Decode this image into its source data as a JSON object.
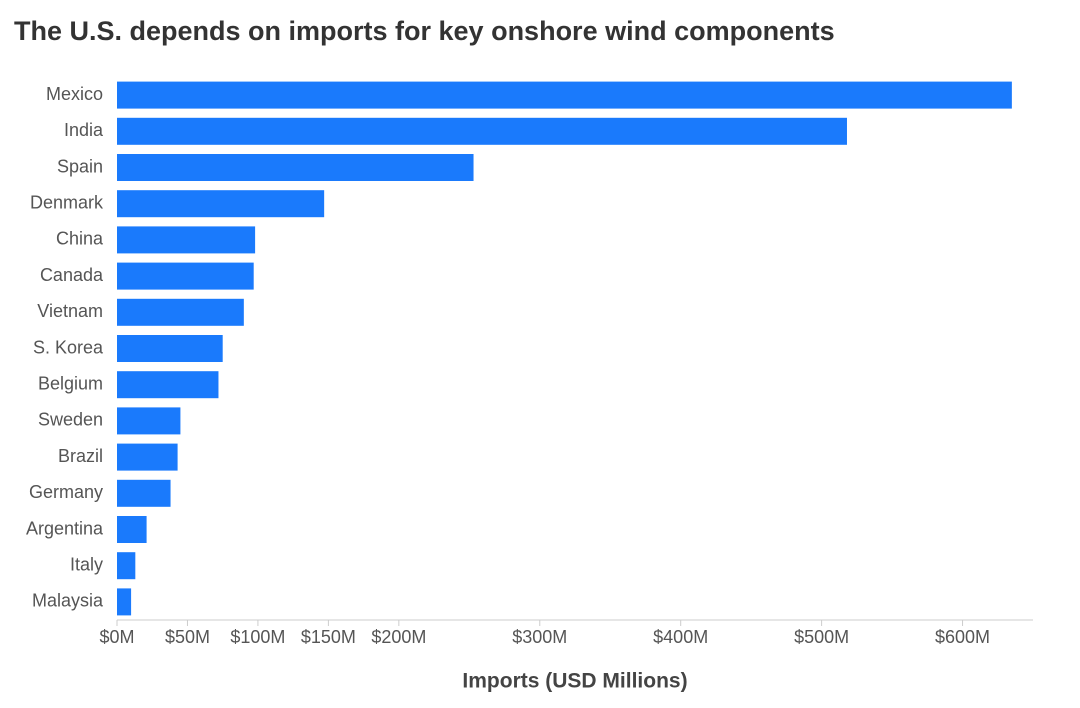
{
  "chart_data": {
    "type": "hbar",
    "title": "The U.S. depends on imports for key onshore wind components",
    "x_label": "Imports (USD Millions)",
    "categories": [
      "Mexico",
      "India",
      "Spain",
      "Denmark",
      "China",
      "Canada",
      "Vietnam",
      "S. Korea",
      "Belgium",
      "Sweden",
      "Brazil",
      "Germany",
      "Argentina",
      "Italy",
      "Malaysia"
    ],
    "values": [
      635,
      518,
      253,
      147,
      98,
      97,
      90,
      75,
      72,
      45,
      43,
      38,
      21,
      13,
      10
    ],
    "color": "#1a7afc",
    "xlim": [
      0,
      650
    ],
    "xticks": [
      {
        "value": 0,
        "label": "$0M"
      },
      {
        "value": 50,
        "label": "$50M"
      },
      {
        "value": 100,
        "label": "$100M"
      },
      {
        "value": 150,
        "label": "$150M"
      },
      {
        "value": 200,
        "label": "$200M"
      },
      {
        "value": 300,
        "label": "$300M"
      },
      {
        "value": 400,
        "label": "$400M"
      },
      {
        "value": 500,
        "label": "$500M"
      },
      {
        "value": 600,
        "label": "$600M"
      }
    ],
    "grid": false
  }
}
